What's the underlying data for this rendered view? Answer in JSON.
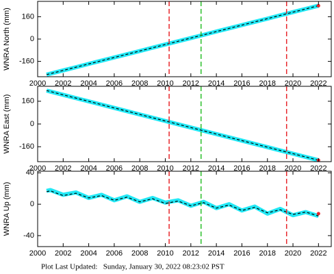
{
  "chart_data": [
    {
      "type": "line",
      "ylabel": "WNRA North (mm)",
      "xlim": [
        2000,
        2023
      ],
      "ylim": [
        -270,
        270
      ],
      "xticks": [
        2000,
        2002,
        2004,
        2006,
        2008,
        2010,
        2012,
        2014,
        2016,
        2018,
        2020,
        2022
      ],
      "yticks": [
        -160,
        0,
        160
      ],
      "vlines": [
        {
          "x": 2010.3,
          "color": "#e8262b"
        },
        {
          "x": 2012.8,
          "color": "#2bbf2b"
        },
        {
          "x": 2019.5,
          "color": "#e8262b"
        }
      ],
      "series": [
        {
          "color": "#22e8f5",
          "style": "band",
          "x": [
            2000.7,
            2001,
            2002,
            2003,
            2004,
            2005,
            2006,
            2007,
            2008,
            2009,
            2010,
            2011,
            2012,
            2013,
            2014,
            2015,
            2016,
            2017,
            2018,
            2019,
            2020,
            2021,
            2022
          ],
          "values": [
            -255,
            -248,
            -225,
            -202,
            -178,
            -155,
            -132,
            -109,
            -86,
            -62,
            -39,
            -16,
            7,
            30,
            54,
            77,
            100,
            123,
            146,
            170,
            193,
            216,
            239
          ]
        },
        {
          "color": "#000000",
          "style": "dashed",
          "x": [
            2000.7,
            2022
          ],
          "values": [
            -255,
            239
          ]
        },
        {
          "color": "#e8262b",
          "style": "dots",
          "x": [
            2022
          ],
          "values": [
            239
          ]
        }
      ]
    },
    {
      "type": "line",
      "ylabel": "WNRA East (mm)",
      "xlim": [
        2000,
        2023
      ],
      "ylim": [
        -265,
        265
      ],
      "xticks": [
        2000,
        2002,
        2004,
        2006,
        2008,
        2010,
        2012,
        2014,
        2016,
        2018,
        2020,
        2022
      ],
      "yticks": [
        -160,
        0,
        160
      ],
      "vlines": [
        {
          "x": 2010.3,
          "color": "#e8262b"
        },
        {
          "x": 2012.8,
          "color": "#2bbf2b"
        },
        {
          "x": 2019.5,
          "color": "#e8262b"
        }
      ],
      "series": [
        {
          "color": "#22e8f5",
          "style": "band",
          "x": [
            2000.7,
            2001,
            2002,
            2003,
            2004,
            2005,
            2006,
            2007,
            2008,
            2009,
            2010,
            2011,
            2012,
            2013,
            2014,
            2015,
            2016,
            2017,
            2018,
            2019,
            2020,
            2021,
            2022
          ],
          "values": [
            235,
            228,
            205,
            182,
            159,
            136,
            113,
            90,
            67,
            44,
            21,
            -2,
            -25,
            -48,
            -71,
            -94,
            -117,
            -140,
            -163,
            -186,
            -209,
            -232,
            -255
          ]
        },
        {
          "color": "#000000",
          "style": "dashed",
          "x": [
            2000.7,
            2022
          ],
          "values": [
            235,
            -255
          ]
        },
        {
          "color": "#e8262b",
          "style": "dots",
          "x": [
            2022
          ],
          "values": [
            -255
          ]
        }
      ]
    },
    {
      "type": "line",
      "ylabel": "WNRA Up (mm)",
      "xlim": [
        2000,
        2023
      ],
      "ylim": [
        -54,
        42
      ],
      "xticks": [
        2000,
        2002,
        2004,
        2006,
        2008,
        2010,
        2012,
        2014,
        2016,
        2018,
        2020,
        2022
      ],
      "yticks": [
        -40,
        0,
        40
      ],
      "vlines": [
        {
          "x": 2010.3,
          "color": "#e8262b"
        },
        {
          "x": 2012.8,
          "color": "#2bbf2b"
        },
        {
          "x": 2019.5,
          "color": "#e8262b"
        }
      ],
      "series": [
        {
          "color": "#22e8f5",
          "style": "band",
          "x": [
            2000.7,
            2001,
            2002,
            2003,
            2004,
            2005,
            2006,
            2007,
            2008,
            2009,
            2010,
            2011,
            2012,
            2013,
            2014,
            2015,
            2016,
            2017,
            2018,
            2019,
            2020,
            2021,
            2022
          ],
          "values": [
            17,
            18,
            12,
            15,
            8,
            12,
            5,
            10,
            3,
            8,
            2,
            5,
            -2,
            3,
            -5,
            0,
            -8,
            -3,
            -12,
            -6,
            -14,
            -10,
            -15
          ]
        },
        {
          "color": "#000000",
          "style": "dashed",
          "x": [
            2000.7,
            2001,
            2002,
            2003,
            2004,
            2005,
            2006,
            2007,
            2008,
            2009,
            2010,
            2011,
            2012,
            2013,
            2014,
            2015,
            2016,
            2017,
            2018,
            2019,
            2020,
            2021,
            2022
          ],
          "values": [
            16,
            17,
            11,
            14,
            8,
            11,
            5,
            9,
            3,
            7,
            1,
            4,
            -2,
            2,
            -5,
            -1,
            -8,
            -4,
            -11,
            -7,
            -13,
            -10,
            -15
          ]
        },
        {
          "color": "#e8262b",
          "style": "dots",
          "x": [
            2022
          ],
          "values": [
            -12
          ]
        }
      ]
    }
  ],
  "footer": "Plot Last Updated:   Sunday, January 30, 2022 08:23:02 PST"
}
